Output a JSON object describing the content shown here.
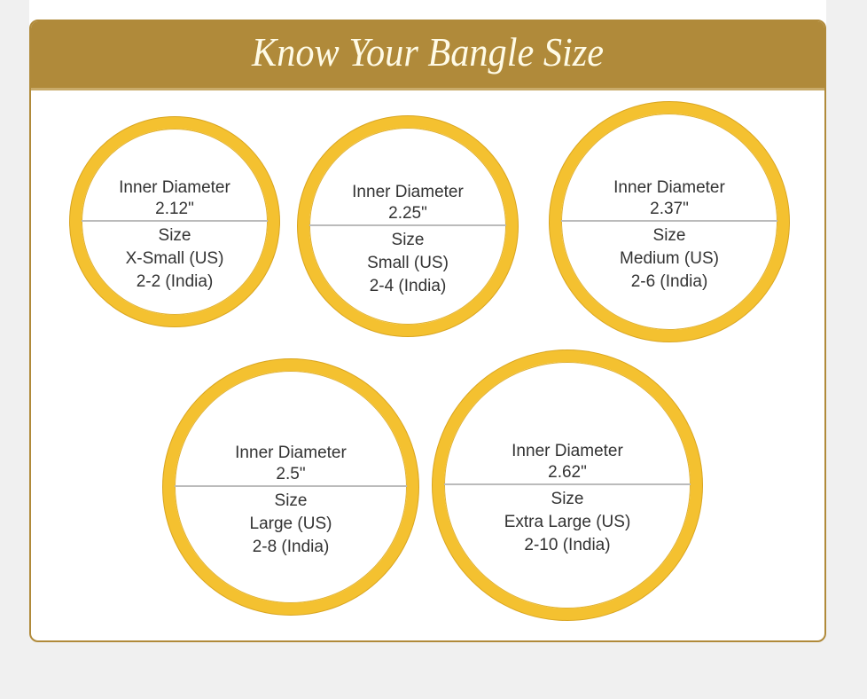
{
  "title": "Know Your Bangle Size",
  "colors": {
    "header": "#b08a3a",
    "ring": "#f4c130"
  },
  "bangles": [
    {
      "label": "Inner Diameter",
      "diameter": "2.12\"",
      "size_label": "Size",
      "us": "X-Small (US)",
      "india": "2-2 (India)"
    },
    {
      "label": "Inner Diameter",
      "diameter": "2.25\"",
      "size_label": "Size",
      "us": "Small (US)",
      "india": "2-4 (India)"
    },
    {
      "label": "Inner Diameter",
      "diameter": "2.37\"",
      "size_label": "Size",
      "us": "Medium (US)",
      "india": "2-6 (India)"
    },
    {
      "label": "Inner Diameter",
      "diameter": "2.5\"",
      "size_label": "Size",
      "us": "Large (US)",
      "india": "2-8 (India)"
    },
    {
      "label": "Inner Diameter",
      "diameter": "2.62\"",
      "size_label": "Size",
      "us": "Extra Large (US)",
      "india": "2-10 (India)"
    }
  ]
}
